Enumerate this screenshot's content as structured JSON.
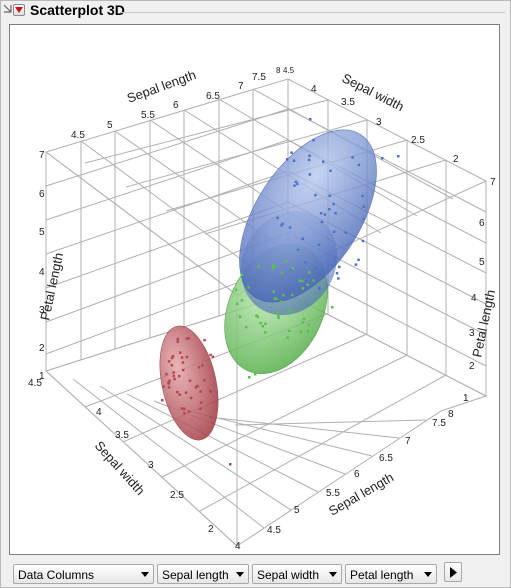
{
  "window": {
    "title": "Scatterplot 3D"
  },
  "controls": {
    "data_columns": "Data Columns",
    "x_column": "Sepal length",
    "y_column": "Sepal width",
    "z_column": "Petal length"
  },
  "axes": {
    "top_sepal_length": {
      "label": "Sepal length",
      "ticks": [
        "4.5",
        "5",
        "5.5",
        "6",
        "6.5",
        "7",
        "7.5"
      ]
    },
    "top_sepal_width": {
      "label": "Sepal width",
      "ticks": [
        "4",
        "3.5",
        "3",
        "2.5",
        "2"
      ]
    },
    "top_corner_ticks": [
      "8",
      "4.5"
    ],
    "left_petal_length": {
      "label": "Petal length",
      "ticks": [
        "7",
        "6",
        "5",
        "4",
        "3",
        "2",
        "1"
      ]
    },
    "right_petal_length": {
      "label": "Petal length",
      "ticks": [
        "7",
        "6",
        "5",
        "4",
        "3",
        "2",
        "1"
      ]
    },
    "bottom_sepal_width": {
      "label": "Sepal width",
      "ticks": [
        "4.5",
        "4",
        "3.5",
        "3",
        "2.5",
        "2"
      ]
    },
    "bottom_sepal_length": {
      "label": "Sepal length",
      "ticks": [
        "4",
        "4.5",
        "5",
        "5.5",
        "6",
        "6.5",
        "7",
        "7.5",
        "8"
      ]
    }
  },
  "colors": {
    "setosa": "#b5474f",
    "versicolor": "#5bbf4f",
    "virginica": "#4f72c8",
    "grid": "#b0b0b0"
  }
}
